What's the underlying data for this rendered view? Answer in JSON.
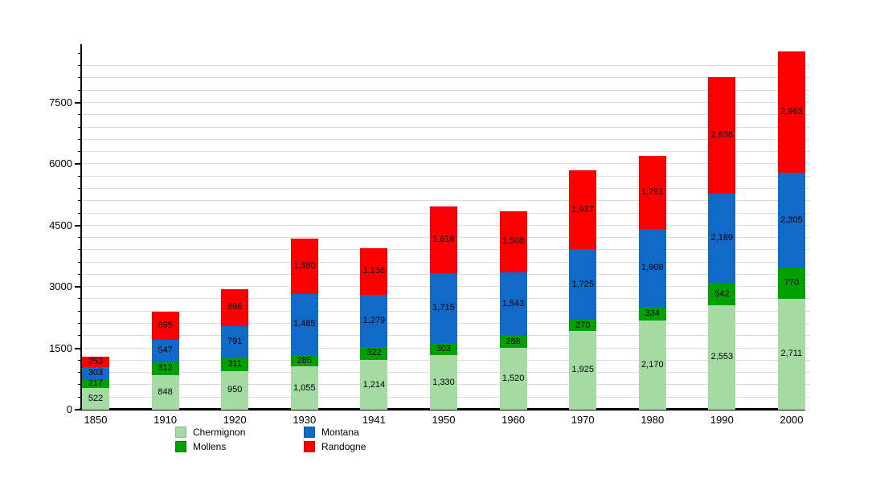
{
  "chart_data": {
    "type": "bar",
    "stacked": true,
    "title": "",
    "xlabel": "",
    "ylabel": "",
    "categories": [
      "1850",
      "1910",
      "1920",
      "1930",
      "1941",
      "1950",
      "1960",
      "1970",
      "1980",
      "1990",
      "2000"
    ],
    "series": [
      {
        "name": "Chermignon",
        "color": "#a3dba3",
        "values": [
          522,
          848,
          950,
          1055,
          1214,
          1330,
          1520,
          1925,
          2170,
          2553,
          2711
        ]
      },
      {
        "name": "Mollens",
        "color": "#00a000",
        "values": [
          217,
          312,
          311,
          285,
          322,
          303,
          288,
          270,
          334,
          542,
          770
        ]
      },
      {
        "name": "Montana",
        "color": "#1169c8",
        "values": [
          303,
          547,
          791,
          1485,
          1279,
          1715,
          1543,
          1725,
          1908,
          2189,
          2305
        ]
      },
      {
        "name": "Randogne",
        "color": "#fa0000",
        "values": [
          253,
          695,
          896,
          1360,
          1136,
          1616,
          1508,
          1937,
          1791,
          2838,
          2963
        ]
      }
    ],
    "ylim": [
      0,
      8933
    ],
    "yticks_major": [
      0,
      1500,
      3000,
      4500,
      6000,
      7500
    ],
    "ytick_minor_step": 300,
    "grid": true,
    "gridline_color": "#dcdcdc",
    "value_labels_shown": true,
    "legend_position": "bottom",
    "legend_columns": [
      [
        "Chermignon",
        "Mollens"
      ],
      [
        "Montana",
        "Randogne"
      ]
    ]
  }
}
